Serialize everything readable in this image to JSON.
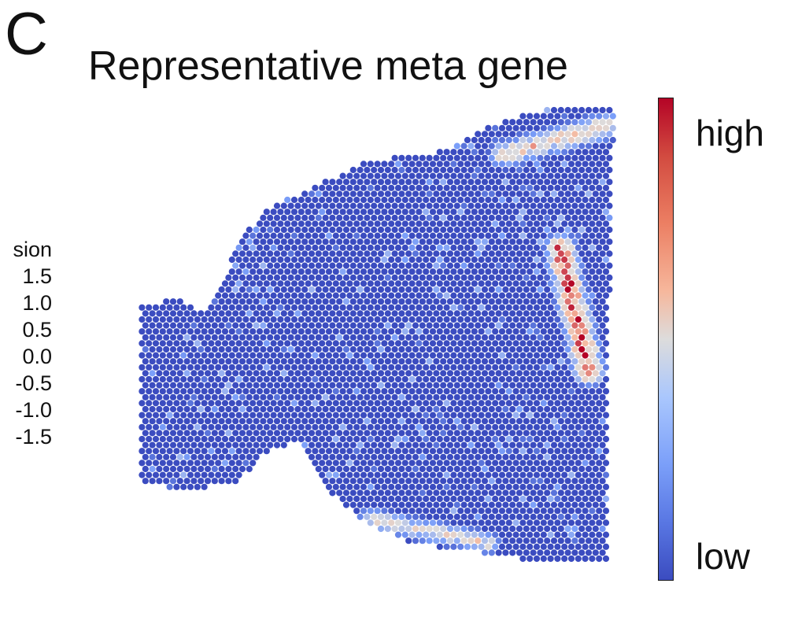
{
  "panel_label": "C",
  "chart_data": {
    "type": "heatmap",
    "title": "Representative meta gene",
    "colorbar": {
      "high_label": "high",
      "low_label": "low",
      "colors": [
        "#3b4cc0",
        "#7b9ff9",
        "#dddcdc",
        "#f6b79c",
        "#b40426"
      ]
    },
    "partial_legend": {
      "title_fragment": "sion",
      "ticks": [
        "1.5",
        "1.0",
        "0.5",
        "0.0",
        "-0.5",
        "-1.0",
        "-1.5"
      ]
    },
    "spot_color": "#3b4cc0",
    "hotspots": [
      {
        "name": "right-cortex-band",
        "level": 1.0
      },
      {
        "name": "top-right-border",
        "level": 0.7
      },
      {
        "name": "bottom-border",
        "level": 0.6
      }
    ]
  }
}
